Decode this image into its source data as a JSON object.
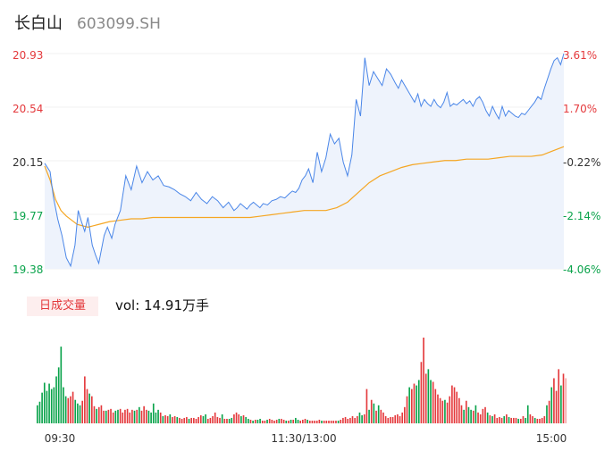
{
  "header": {
    "name": "长白山",
    "code": "603099.SH"
  },
  "volume_header": {
    "tag": "日成交量",
    "text": "vol: 14.91万手"
  },
  "colors": {
    "up": "#e4393c",
    "down": "#0aa34b",
    "price_line": "#4a86e8",
    "avg_line": "#f5a623",
    "area_fill": "#eef3fc"
  },
  "chart_data": [
    {
      "type": "line",
      "name": "intraday-price",
      "ylim": [
        19.38,
        20.93
      ],
      "y_ticks_left": [
        "20.93",
        "20.54",
        "20.15",
        "19.77",
        "19.38"
      ],
      "y_ticks_right": [
        "3.61%",
        "1.70%",
        "-0.22%",
        "-2.14%",
        "-4.06%"
      ],
      "x_ticks": [
        "09:30",
        "11:30/13:00",
        "15:00"
      ],
      "series": [
        {
          "key": "price",
          "x": [
            0,
            5,
            8,
            12,
            16,
            20,
            24,
            28,
            31,
            34,
            37,
            40,
            44,
            47,
            50,
            52,
            55,
            58,
            62,
            65,
            70,
            75,
            80,
            85,
            90,
            95,
            100,
            105,
            110,
            115,
            120,
            125,
            130,
            135,
            140,
            145,
            150,
            155,
            160,
            165,
            170,
            175,
            178,
            181,
            184,
            187,
            190,
            193,
            196,
            199,
            202,
            206,
            210,
            214,
            218,
            222,
            226,
            229,
            232,
            235,
            238,
            241,
            244,
            248,
            252,
            256,
            260,
            264,
            268,
            272,
            276,
            280,
            284,
            288,
            292,
            296,
            300,
            304,
            308,
            312,
            316,
            320,
            324,
            327,
            330,
            333,
            336,
            339,
            342,
            345,
            348,
            351,
            354,
            357,
            360,
            363,
            366,
            369,
            372,
            375,
            378,
            381,
            384,
            387,
            390,
            393,
            396,
            399,
            402,
            405,
            408,
            411,
            414,
            417,
            420,
            423,
            426,
            429,
            432,
            435,
            438,
            441,
            444,
            447,
            450,
            453,
            456,
            459,
            462,
            465,
            468,
            471,
            474,
            477,
            480
          ],
          "values": [
            20.14,
            20.08,
            19.9,
            19.74,
            19.62,
            19.46,
            19.4,
            19.55,
            19.8,
            19.72,
            19.65,
            19.75,
            19.55,
            19.48,
            19.42,
            19.5,
            19.62,
            19.68,
            19.6,
            19.7,
            19.8,
            20.05,
            19.95,
            20.12,
            20.0,
            20.08,
            20.02,
            20.05,
            19.98,
            19.97,
            19.95,
            19.92,
            19.9,
            19.87,
            19.93,
            19.88,
            19.85,
            19.9,
            19.87,
            19.82,
            19.86,
            19.8,
            19.82,
            19.85,
            19.83,
            19.81,
            19.84,
            19.86,
            19.84,
            19.82,
            19.85,
            19.84,
            19.87,
            19.88,
            19.9,
            19.89,
            19.92,
            19.94,
            19.93,
            19.96,
            20.02,
            20.05,
            20.1,
            20.0,
            20.22,
            20.08,
            20.18,
            20.35,
            20.28,
            20.32,
            20.15,
            20.05,
            20.2,
            20.6,
            20.48,
            20.9,
            20.7,
            20.8,
            20.75,
            20.7,
            20.82,
            20.78,
            20.72,
            20.68,
            20.74,
            20.7,
            20.66,
            20.62,
            20.58,
            20.64,
            20.55,
            20.6,
            20.57,
            20.55,
            20.6,
            20.56,
            20.54,
            20.58,
            20.65,
            20.55,
            20.57,
            20.56,
            20.58,
            20.6,
            20.57,
            20.59,
            20.55,
            20.6,
            20.62,
            20.58,
            20.52,
            20.48,
            20.55,
            20.5,
            20.46,
            20.55,
            20.48,
            20.52,
            20.5,
            20.48,
            20.47,
            20.5,
            20.49,
            20.52,
            20.55,
            20.58,
            20.62,
            20.6,
            20.68,
            20.75,
            20.82,
            20.88,
            20.9,
            20.85,
            20.93
          ]
        },
        {
          "key": "avg",
          "x": [
            0,
            5,
            10,
            15,
            20,
            25,
            30,
            35,
            40,
            45,
            50,
            60,
            70,
            80,
            90,
            100,
            110,
            120,
            130,
            140,
            150,
            160,
            170,
            180,
            190,
            200,
            210,
            220,
            230,
            240,
            250,
            260,
            270,
            280,
            290,
            300,
            310,
            320,
            330,
            340,
            350,
            360,
            370,
            380,
            390,
            400,
            410,
            420,
            430,
            440,
            450,
            460,
            470,
            480
          ],
          "values": [
            20.12,
            20.02,
            19.88,
            19.8,
            19.76,
            19.73,
            19.7,
            19.69,
            19.68,
            19.69,
            19.7,
            19.72,
            19.73,
            19.74,
            19.74,
            19.75,
            19.75,
            19.75,
            19.75,
            19.75,
            19.75,
            19.75,
            19.75,
            19.75,
            19.75,
            19.76,
            19.77,
            19.78,
            19.79,
            19.8,
            19.8,
            19.8,
            19.82,
            19.86,
            19.93,
            20.0,
            20.05,
            20.08,
            20.11,
            20.13,
            20.14,
            20.15,
            20.16,
            20.16,
            20.17,
            20.17,
            20.17,
            20.18,
            20.19,
            20.19,
            20.19,
            20.2,
            20.23,
            20.26
          ]
        }
      ]
    },
    {
      "type": "bar",
      "name": "volume",
      "values": [
        [
          20,
          0
        ],
        [
          24,
          0
        ],
        [
          34,
          0
        ],
        [
          45,
          0
        ],
        [
          36,
          0
        ],
        [
          44,
          0
        ],
        [
          38,
          0
        ],
        [
          40,
          0
        ],
        [
          52,
          0
        ],
        [
          62,
          0
        ],
        [
          85,
          0
        ],
        [
          40,
          0
        ],
        [
          30,
          0
        ],
        [
          28,
          1
        ],
        [
          30,
          1
        ],
        [
          35,
          1
        ],
        [
          26,
          0
        ],
        [
          22,
          0
        ],
        [
          20,
          0
        ],
        [
          25,
          1
        ],
        [
          52,
          1
        ],
        [
          38,
          1
        ],
        [
          33,
          0
        ],
        [
          30,
          1
        ],
        [
          19,
          1
        ],
        [
          16,
          0
        ],
        [
          18,
          1
        ],
        [
          20,
          1
        ],
        [
          14,
          1
        ],
        [
          14,
          0
        ],
        [
          15,
          1
        ],
        [
          16,
          1
        ],
        [
          12,
          1
        ],
        [
          14,
          0
        ],
        [
          15,
          0
        ],
        [
          16,
          1
        ],
        [
          12,
          1
        ],
        [
          15,
          1
        ],
        [
          16,
          1
        ],
        [
          12,
          1
        ],
        [
          15,
          1
        ],
        [
          14,
          0
        ],
        [
          15,
          1
        ],
        [
          18,
          0
        ],
        [
          14,
          1
        ],
        [
          19,
          1
        ],
        [
          15,
          1
        ],
        [
          14,
          0
        ],
        [
          12,
          0
        ],
        [
          22,
          0
        ],
        [
          12,
          0
        ],
        [
          15,
          0
        ],
        [
          12,
          1
        ],
        [
          8,
          0
        ],
        [
          9,
          1
        ],
        [
          8,
          1
        ],
        [
          10,
          0
        ],
        [
          7,
          1
        ],
        [
          8,
          1
        ],
        [
          7,
          0
        ],
        [
          6,
          1
        ],
        [
          5,
          1
        ],
        [
          6,
          1
        ],
        [
          7,
          1
        ],
        [
          5,
          0
        ],
        [
          6,
          1
        ],
        [
          6,
          1
        ],
        [
          5,
          1
        ],
        [
          7,
          1
        ],
        [
          9,
          1
        ],
        [
          8,
          0
        ],
        [
          10,
          0
        ],
        [
          5,
          1
        ],
        [
          6,
          1
        ],
        [
          8,
          1
        ],
        [
          12,
          1
        ],
        [
          7,
          1
        ],
        [
          6,
          1
        ],
        [
          10,
          0
        ],
        [
          5,
          1
        ],
        [
          5,
          1
        ],
        [
          5,
          0
        ],
        [
          6,
          0
        ],
        [
          10,
          1
        ],
        [
          12,
          1
        ],
        [
          10,
          1
        ],
        [
          8,
          0
        ],
        [
          9,
          1
        ],
        [
          7,
          0
        ],
        [
          5,
          0
        ],
        [
          4,
          1
        ],
        [
          3,
          0
        ],
        [
          4,
          1
        ],
        [
          4,
          0
        ],
        [
          5,
          0
        ],
        [
          3,
          1
        ],
        [
          3,
          1
        ],
        [
          4,
          0
        ],
        [
          5,
          1
        ],
        [
          4,
          1
        ],
        [
          3,
          1
        ],
        [
          4,
          1
        ],
        [
          5,
          0
        ],
        [
          5,
          1
        ],
        [
          4,
          1
        ],
        [
          3,
          0
        ],
        [
          3,
          1
        ],
        [
          4,
          0
        ],
        [
          4,
          1
        ],
        [
          6,
          0
        ],
        [
          4,
          0
        ],
        [
          3,
          1
        ],
        [
          4,
          1
        ],
        [
          5,
          1
        ],
        [
          4,
          0
        ],
        [
          3,
          1
        ],
        [
          3,
          1
        ],
        [
          3,
          1
        ],
        [
          3,
          1
        ],
        [
          4,
          1
        ],
        [
          3,
          0
        ],
        [
          3,
          1
        ],
        [
          3,
          1
        ],
        [
          3,
          1
        ],
        [
          3,
          1
        ],
        [
          3,
          1
        ],
        [
          3,
          1
        ],
        [
          3,
          0
        ],
        [
          4,
          1
        ],
        [
          6,
          1
        ],
        [
          7,
          1
        ],
        [
          5,
          1
        ],
        [
          6,
          1
        ],
        [
          8,
          1
        ],
        [
          6,
          1
        ],
        [
          8,
          1
        ],
        [
          12,
          0
        ],
        [
          9,
          0
        ],
        [
          10,
          1
        ],
        [
          38,
          1
        ],
        [
          15,
          0
        ],
        [
          26,
          1
        ],
        [
          22,
          0
        ],
        [
          14,
          1
        ],
        [
          20,
          0
        ],
        [
          15,
          1
        ],
        [
          12,
          1
        ],
        [
          8,
          1
        ],
        [
          6,
          1
        ],
        [
          7,
          1
        ],
        [
          7,
          1
        ],
        [
          9,
          1
        ],
        [
          10,
          1
        ],
        [
          8,
          1
        ],
        [
          12,
          1
        ],
        [
          18,
          1
        ],
        [
          30,
          1
        ],
        [
          40,
          0
        ],
        [
          38,
          1
        ],
        [
          44,
          1
        ],
        [
          42,
          0
        ],
        [
          48,
          0
        ],
        [
          68,
          1
        ],
        [
          95,
          1
        ],
        [
          55,
          1
        ],
        [
          60,
          0
        ],
        [
          48,
          0
        ],
        [
          46,
          1
        ],
        [
          38,
          1
        ],
        [
          32,
          1
        ],
        [
          28,
          1
        ],
        [
          25,
          1
        ],
        [
          26,
          0
        ],
        [
          23,
          1
        ],
        [
          30,
          1
        ],
        [
          42,
          1
        ],
        [
          40,
          1
        ],
        [
          35,
          1
        ],
        [
          28,
          1
        ],
        [
          20,
          1
        ],
        [
          15,
          0
        ],
        [
          25,
          1
        ],
        [
          18,
          0
        ],
        [
          15,
          0
        ],
        [
          14,
          1
        ],
        [
          20,
          0
        ],
        [
          12,
          1
        ],
        [
          10,
          1
        ],
        [
          16,
          1
        ],
        [
          18,
          1
        ],
        [
          12,
          0
        ],
        [
          9,
          1
        ],
        [
          8,
          0
        ],
        [
          10,
          1
        ],
        [
          6,
          1
        ],
        [
          7,
          1
        ],
        [
          6,
          1
        ],
        [
          8,
          0
        ],
        [
          10,
          1
        ],
        [
          7,
          0
        ],
        [
          6,
          1
        ],
        [
          6,
          1
        ],
        [
          6,
          1
        ],
        [
          5,
          0
        ],
        [
          5,
          1
        ],
        [
          8,
          1
        ],
        [
          6,
          0
        ],
        [
          20,
          0
        ],
        [
          10,
          1
        ],
        [
          8,
          1
        ],
        [
          6,
          0
        ],
        [
          5,
          1
        ],
        [
          5,
          1
        ],
        [
          6,
          1
        ],
        [
          8,
          1
        ],
        [
          20,
          0
        ],
        [
          25,
          1
        ],
        [
          40,
          0
        ],
        [
          50,
          1
        ],
        [
          36,
          1
        ],
        [
          60,
          1
        ],
        [
          42,
          0
        ],
        [
          55,
          1
        ],
        [
          50,
          1
        ]
      ]
    }
  ]
}
